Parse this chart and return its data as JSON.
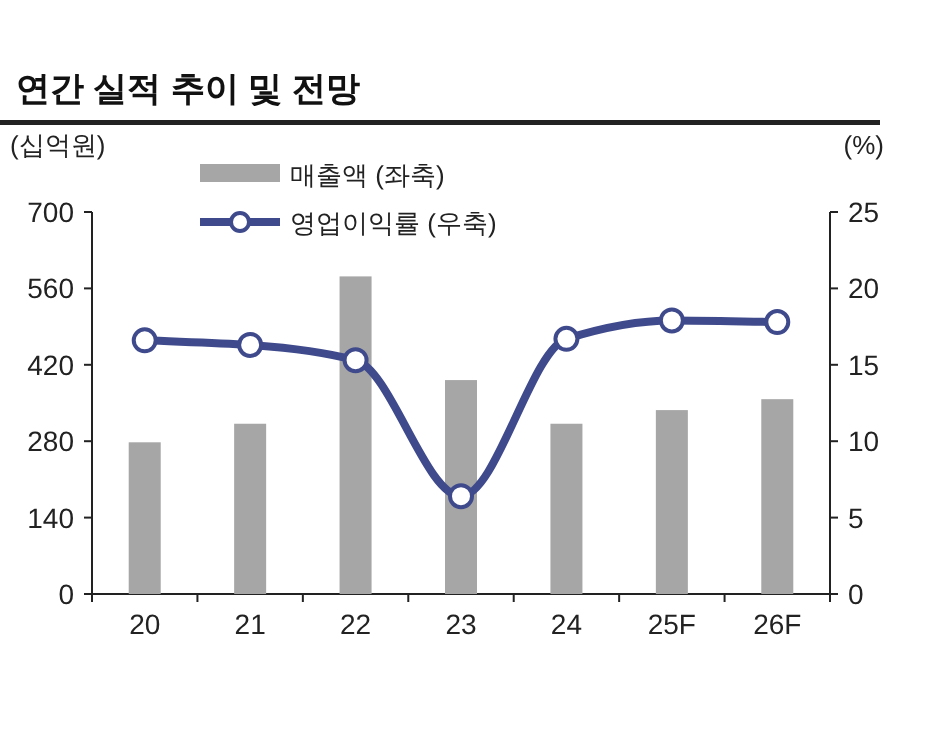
{
  "chart_data": {
    "type": "bar",
    "title": "연간 실적 추이 및 전망",
    "categories": [
      "20",
      "21",
      "22",
      "23",
      "24",
      "25F",
      "26F"
    ],
    "series": [
      {
        "name": "매출액 (좌축)",
        "color": "#a6a6a6",
        "values": [
          278,
          312,
          582,
          392,
          312,
          337,
          357
        ]
      },
      {
        "name": "영업이익률 (우축)",
        "type": "line",
        "axis": "y2",
        "color": "#3f4a8c",
        "marker": "circle",
        "values": [
          16.6,
          16.3,
          15.3,
          6.4,
          16.7,
          17.9,
          17.8
        ]
      }
    ],
    "ylabel": "(십억원)",
    "y2label": "(%)",
    "ylim": [
      0,
      700
    ],
    "yticks": [
      0,
      140,
      280,
      420,
      560,
      700
    ],
    "y2lim": [
      0,
      25
    ],
    "y2ticks": [
      0,
      5,
      10,
      15,
      20,
      25
    ],
    "legend": "top left"
  }
}
